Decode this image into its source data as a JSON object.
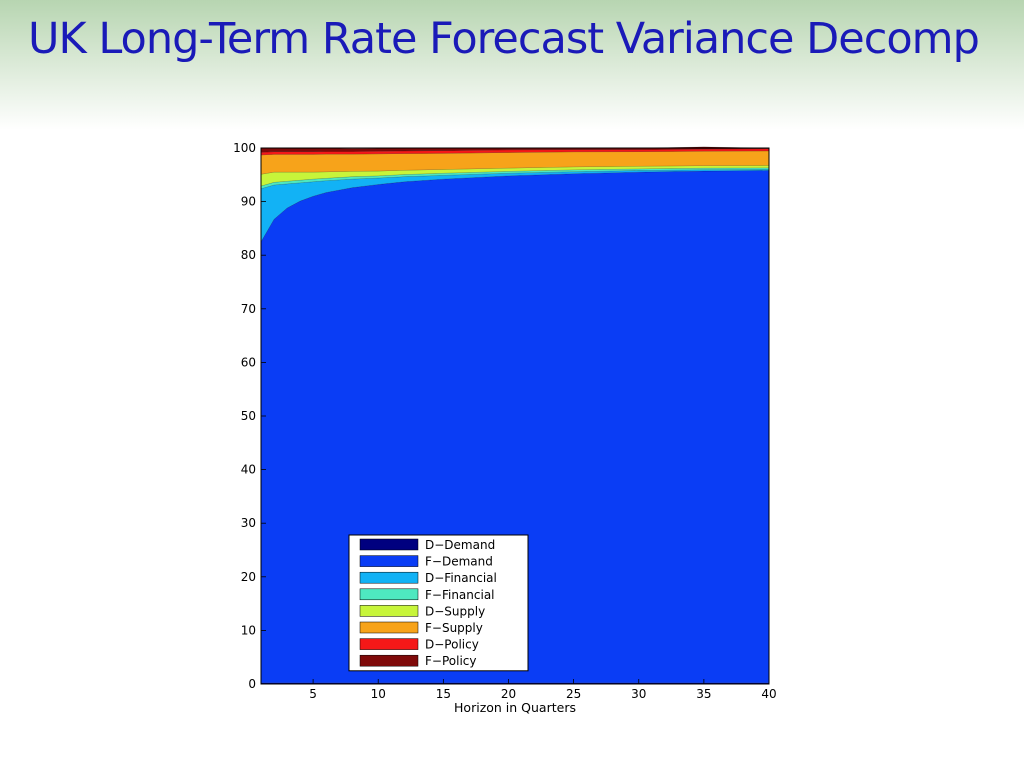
{
  "slide": {
    "title": "UK Long-Term Rate Forecast Variance Decomp"
  },
  "chart_data": {
    "type": "area",
    "stacked": true,
    "xlabel": "Horizon in Quarters",
    "ylabel": "",
    "xlim": [
      1,
      40
    ],
    "ylim": [
      0,
      100
    ],
    "xticks": [
      5,
      10,
      15,
      20,
      25,
      30,
      35,
      40
    ],
    "yticks": [
      0,
      10,
      20,
      30,
      40,
      50,
      60,
      70,
      80,
      90,
      100
    ],
    "grid": false,
    "legend_position": "lower-left",
    "x": [
      1,
      2,
      3,
      4,
      5,
      6,
      8,
      10,
      12,
      15,
      20,
      25,
      30,
      35,
      40
    ],
    "series": [
      {
        "name": "D−Demand",
        "color": "#00007f",
        "values": [
          0.2,
          0.2,
          0.2,
          0.2,
          0.2,
          0.2,
          0.2,
          0.2,
          0.2,
          0.2,
          0.2,
          0.2,
          0.2,
          0.2,
          0.2
        ]
      },
      {
        "name": "F−Demand",
        "color": "#0a3df5",
        "values": [
          82.3,
          86.5,
          88.6,
          89.9,
          90.8,
          91.5,
          92.4,
          93.0,
          93.5,
          94.0,
          94.6,
          95.0,
          95.3,
          95.5,
          95.6
        ]
      },
      {
        "name": "D−Financial",
        "color": "#12b2f5",
        "values": [
          9.9,
          6.4,
          4.5,
          3.4,
          2.7,
          2.2,
          1.6,
          1.2,
          0.95,
          0.7,
          0.5,
          0.38,
          0.3,
          0.25,
          0.2
        ]
      },
      {
        "name": "F−Financial",
        "color": "#4ee8c0",
        "values": [
          0.5,
          0.5,
          0.5,
          0.5,
          0.5,
          0.45,
          0.45,
          0.4,
          0.4,
          0.4,
          0.35,
          0.35,
          0.3,
          0.3,
          0.3
        ]
      },
      {
        "name": "D−Supply",
        "color": "#c7f53a",
        "values": [
          2.2,
          1.9,
          1.7,
          1.5,
          1.3,
          1.2,
          1.0,
          0.9,
          0.8,
          0.7,
          0.6,
          0.55,
          0.5,
          0.45,
          0.45
        ]
      },
      {
        "name": "F−Supply",
        "color": "#f7a31a",
        "values": [
          3.6,
          3.3,
          3.3,
          3.3,
          3.3,
          3.3,
          3.2,
          3.2,
          3.1,
          3.0,
          2.9,
          2.8,
          2.7,
          2.7,
          2.7
        ]
      },
      {
        "name": "D−Policy",
        "color": "#f51818",
        "values": [
          0.5,
          0.5,
          0.5,
          0.5,
          0.5,
          0.5,
          0.5,
          0.5,
          0.5,
          0.5,
          0.5,
          0.4,
          0.4,
          0.4,
          0.4
        ]
      },
      {
        "name": "F−Policy",
        "color": "#7f0a0a",
        "values": [
          0.8,
          0.7,
          0.6,
          0.6,
          0.6,
          0.6,
          0.5,
          0.5,
          0.5,
          0.5,
          0.35,
          0.32,
          0.3,
          0.4,
          0.15
        ]
      }
    ]
  }
}
